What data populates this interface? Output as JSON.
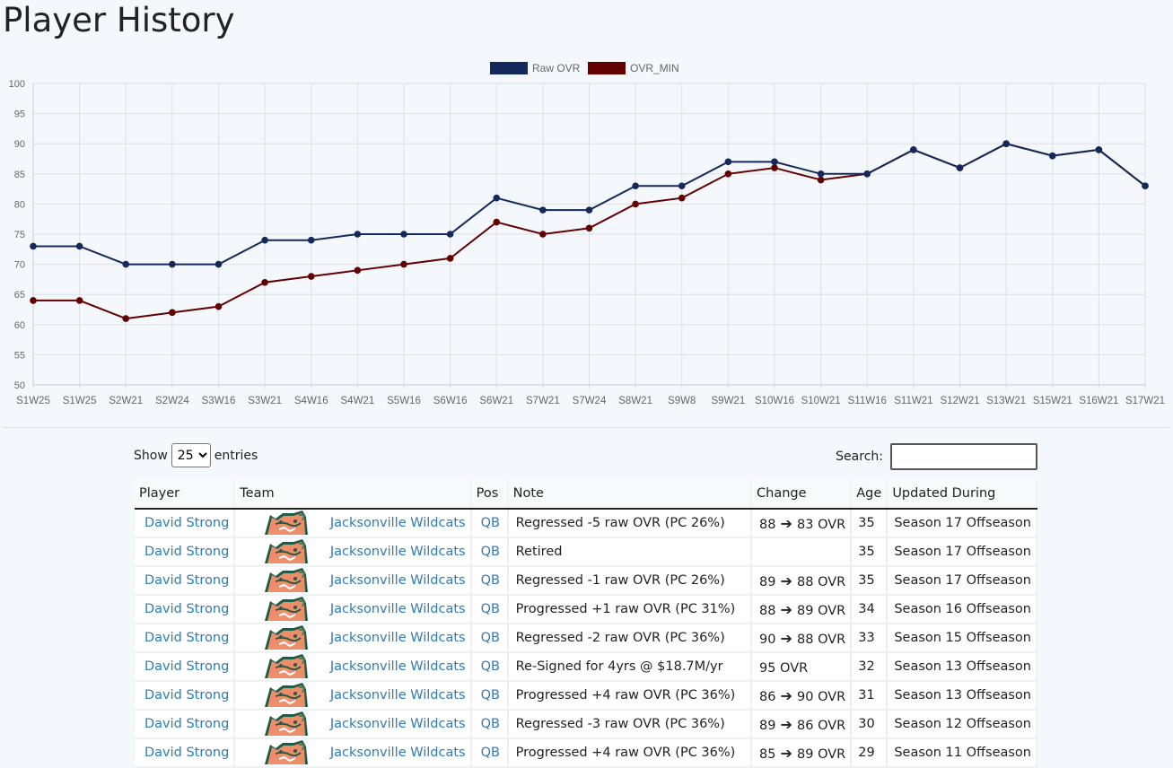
{
  "page": {
    "title": "Player History"
  },
  "chart_data": {
    "type": "line",
    "categories": [
      "S1W25",
      "S1W25",
      "S2W21",
      "S2W24",
      "S3W16",
      "S3W21",
      "S4W16",
      "S4W21",
      "S5W16",
      "S6W16",
      "S6W21",
      "S7W21",
      "S7W24",
      "S8W21",
      "S9W8",
      "S9W21",
      "S10W16",
      "S10W21",
      "S11W16",
      "S11W21",
      "S12W21",
      "S13W21",
      "S15W21",
      "S16W21",
      "S17W21"
    ],
    "series": [
      {
        "name": "Raw OVR",
        "color": "#14295b",
        "values": [
          73,
          73,
          70,
          70,
          70,
          74,
          74,
          75,
          75,
          75,
          81,
          79,
          79,
          83,
          83,
          87,
          87,
          85,
          85,
          89,
          86,
          90,
          88,
          89,
          83
        ]
      },
      {
        "name": "OVR_MIN",
        "color": "#620000",
        "values": [
          64,
          64,
          61,
          62,
          63,
          67,
          68,
          69,
          70,
          71,
          77,
          75,
          76,
          80,
          81,
          85,
          86,
          84,
          85,
          89,
          86,
          90,
          88,
          89,
          83
        ]
      }
    ],
    "ylim": [
      50,
      100
    ],
    "yticks": [
      50,
      55,
      60,
      65,
      70,
      75,
      80,
      85,
      90,
      95,
      100
    ],
    "grid": true,
    "legend_position": "top-center"
  },
  "table_controls": {
    "show_label": "Show",
    "entries_value": "25",
    "entries_label": "entries",
    "search_label": "Search:"
  },
  "table": {
    "headers": [
      "Player",
      "Team",
      "Pos",
      "Note",
      "Change",
      "Age",
      "Updated During"
    ],
    "arrow": "🡒",
    "rows": [
      {
        "player": "David Strong",
        "team": "Jacksonville Wildcats",
        "pos": "QB",
        "note": "Regressed -5 raw OVR (PC 26%)",
        "change_from": "88",
        "change_to": "83 OVR",
        "age": "35",
        "updated": "Season 17 Offseason"
      },
      {
        "player": "David Strong",
        "team": "Jacksonville Wildcats",
        "pos": "QB",
        "note": "Retired",
        "change_from": "",
        "change_to": "",
        "age": "35",
        "updated": "Season 17 Offseason"
      },
      {
        "player": "David Strong",
        "team": "Jacksonville Wildcats",
        "pos": "QB",
        "note": "Regressed -1 raw OVR (PC 26%)",
        "change_from": "89",
        "change_to": "88 OVR",
        "age": "35",
        "updated": "Season 17 Offseason"
      },
      {
        "player": "David Strong",
        "team": "Jacksonville Wildcats",
        "pos": "QB",
        "note": "Progressed +1 raw OVR (PC 31%)",
        "change_from": "88",
        "change_to": "89 OVR",
        "age": "34",
        "updated": "Season 16 Offseason"
      },
      {
        "player": "David Strong",
        "team": "Jacksonville Wildcats",
        "pos": "QB",
        "note": "Regressed -2 raw OVR (PC 36%)",
        "change_from": "90",
        "change_to": "88 OVR",
        "age": "33",
        "updated": "Season 15 Offseason"
      },
      {
        "player": "David Strong",
        "team": "Jacksonville Wildcats",
        "pos": "QB",
        "note": "Re-Signed for 4yrs @ $18.7M/yr",
        "change_from": "",
        "change_to": "95 OVR",
        "age": "32",
        "updated": "Season 13 Offseason"
      },
      {
        "player": "David Strong",
        "team": "Jacksonville Wildcats",
        "pos": "QB",
        "note": "Progressed +4 raw OVR (PC 36%)",
        "change_from": "86",
        "change_to": "90 OVR",
        "age": "31",
        "updated": "Season 13 Offseason"
      },
      {
        "player": "David Strong",
        "team": "Jacksonville Wildcats",
        "pos": "QB",
        "note": "Regressed -3 raw OVR (PC 36%)",
        "change_from": "89",
        "change_to": "86 OVR",
        "age": "30",
        "updated": "Season 12 Offseason"
      },
      {
        "player": "David Strong",
        "team": "Jacksonville Wildcats",
        "pos": "QB",
        "note": "Progressed +4 raw OVR (PC 36%)",
        "change_from": "85",
        "change_to": "89 OVR",
        "age": "29",
        "updated": "Season 11 Offseason"
      }
    ]
  },
  "logo": {
    "icon": "wildcat-logo-icon",
    "colors": {
      "face": "#ef8c6a",
      "outline": "#1f5c45",
      "accent": "#4b7d5e"
    }
  }
}
